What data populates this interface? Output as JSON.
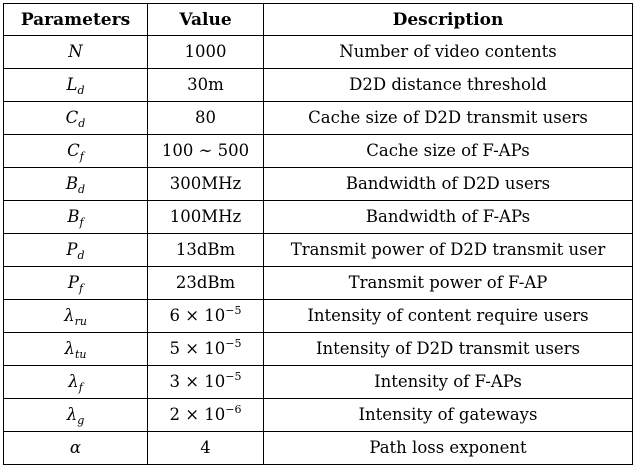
{
  "table": {
    "headers": [
      "Parameters",
      "Value",
      "Description"
    ],
    "rows": [
      {
        "param_base": "N",
        "param_sub": "",
        "value_text": "1000",
        "value_sup": "",
        "description": "Number of video contents"
      },
      {
        "param_base": "L",
        "param_sub": "d",
        "value_text": "30m",
        "value_sup": "",
        "description": "D2D distance threshold"
      },
      {
        "param_base": "C",
        "param_sub": "d",
        "value_text": "80",
        "value_sup": "",
        "description": "Cache size of D2D transmit users"
      },
      {
        "param_base": "C",
        "param_sub": "f",
        "value_text": "100 ∼ 500",
        "value_sup": "",
        "description": "Cache size of F-APs"
      },
      {
        "param_base": "B",
        "param_sub": "d",
        "value_text": "300MHz",
        "value_sup": "",
        "description": "Bandwidth of D2D users"
      },
      {
        "param_base": "B",
        "param_sub": "f",
        "value_text": "100MHz",
        "value_sup": "",
        "description": "Bandwidth of F-APs"
      },
      {
        "param_base": "P",
        "param_sub": "d",
        "value_text": "13dBm",
        "value_sup": "",
        "description": "Transmit power of D2D transmit user"
      },
      {
        "param_base": "P",
        "param_sub": "f",
        "value_text": "23dBm",
        "value_sup": "",
        "description": "Transmit power of F-AP"
      },
      {
        "param_base": "λ",
        "param_sub": "ru",
        "value_text": "6 × 10",
        "value_sup": "−5",
        "description": "Intensity of content require users"
      },
      {
        "param_base": "λ",
        "param_sub": "tu",
        "value_text": "5 × 10",
        "value_sup": "−5",
        "description": "Intensity of D2D transmit users"
      },
      {
        "param_base": "λ",
        "param_sub": "f",
        "value_text": "3 × 10",
        "value_sup": "−5",
        "description": "Intensity of F-APs"
      },
      {
        "param_base": "λ",
        "param_sub": "g",
        "value_text": "2 × 10",
        "value_sup": "−6",
        "description": "Intensity of gateways"
      },
      {
        "param_base": "α",
        "param_sub": "",
        "value_text": "4",
        "value_sup": "",
        "description": "Path loss exponent"
      }
    ]
  }
}
